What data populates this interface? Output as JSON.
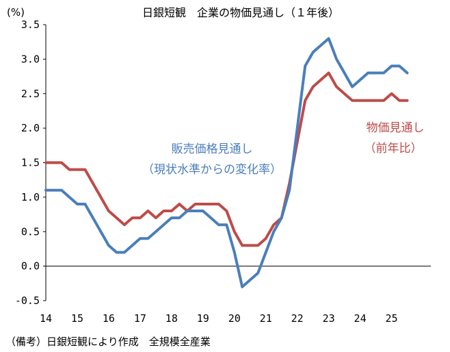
{
  "chart_data": {
    "type": "line",
    "title": "日銀短観　企業の物価見通し（１年後）",
    "unit": "(%)",
    "note": "（備考）日銀短観により作成　全規模全産業",
    "ylim": [
      -0.5,
      3.5
    ],
    "yticks": [
      "3.5",
      "3.0",
      "2.5",
      "2.0",
      "1.5",
      "1.0",
      "0.5",
      "0.0",
      "-0.5"
    ],
    "ytick_values": [
      3.5,
      3.0,
      2.5,
      2.0,
      1.5,
      1.0,
      0.5,
      0.0,
      -0.5
    ],
    "xticks": [
      "14",
      "15",
      "16",
      "17",
      "18",
      "19",
      "20",
      "21",
      "22",
      "23",
      "24",
      "25"
    ],
    "xlim": [
      2014.0,
      2026.25
    ],
    "series": [
      {
        "name": "販売価格見通し",
        "label_line1": "販売価格見通し",
        "label_line2": "（現状水準からの変化率）",
        "color": "#4a7ebb",
        "x": [
          2014.0,
          2014.25,
          2014.5,
          2014.75,
          2015.0,
          2015.25,
          2015.5,
          2015.75,
          2016.0,
          2016.25,
          2016.5,
          2016.75,
          2017.0,
          2017.25,
          2017.5,
          2017.75,
          2018.0,
          2018.25,
          2018.5,
          2018.75,
          2019.0,
          2019.25,
          2019.5,
          2019.75,
          2020.0,
          2020.25,
          2020.5,
          2020.75,
          2021.0,
          2021.25,
          2021.5,
          2021.75,
          2022.0,
          2022.25,
          2022.5,
          2022.75,
          2023.0,
          2023.25,
          2023.5,
          2023.75,
          2024.0,
          2024.25,
          2024.5,
          2024.75,
          2025.0,
          2025.25,
          2025.5
        ],
        "values": [
          1.1,
          1.1,
          1.1,
          1.0,
          0.9,
          0.9,
          0.7,
          0.5,
          0.3,
          0.2,
          0.2,
          0.3,
          0.4,
          0.4,
          0.5,
          0.6,
          0.7,
          0.7,
          0.8,
          0.8,
          0.8,
          0.7,
          0.6,
          0.6,
          0.2,
          -0.3,
          -0.2,
          -0.1,
          0.2,
          0.5,
          0.7,
          1.1,
          2.0,
          2.9,
          3.1,
          3.2,
          3.3,
          3.0,
          2.8,
          2.6,
          2.7,
          2.8,
          2.8,
          2.8,
          2.9,
          2.9,
          2.8
        ]
      },
      {
        "name": "物価見通し",
        "label_line1": "物価見通し",
        "label_line2": "（前年比）",
        "color": "#be4b48",
        "x": [
          2014.0,
          2014.25,
          2014.5,
          2014.75,
          2015.0,
          2015.25,
          2015.5,
          2015.75,
          2016.0,
          2016.25,
          2016.5,
          2016.75,
          2017.0,
          2017.25,
          2017.5,
          2017.75,
          2018.0,
          2018.25,
          2018.5,
          2018.75,
          2019.0,
          2019.25,
          2019.5,
          2019.75,
          2020.0,
          2020.25,
          2020.5,
          2020.75,
          2021.0,
          2021.25,
          2021.5,
          2021.75,
          2022.0,
          2022.25,
          2022.5,
          2022.75,
          2023.0,
          2023.25,
          2023.5,
          2023.75,
          2024.0,
          2024.25,
          2024.5,
          2024.75,
          2025.0,
          2025.25,
          2025.5
        ],
        "values": [
          1.5,
          1.5,
          1.5,
          1.4,
          1.4,
          1.4,
          1.2,
          1.0,
          0.8,
          0.7,
          0.6,
          0.7,
          0.7,
          0.8,
          0.7,
          0.8,
          0.8,
          0.9,
          0.8,
          0.9,
          0.9,
          0.9,
          0.9,
          0.8,
          0.5,
          0.3,
          0.3,
          0.3,
          0.4,
          0.6,
          0.7,
          1.2,
          1.8,
          2.4,
          2.6,
          2.7,
          2.8,
          2.6,
          2.5,
          2.4,
          2.4,
          2.4,
          2.4,
          2.4,
          2.5,
          2.4,
          2.4
        ]
      }
    ]
  }
}
